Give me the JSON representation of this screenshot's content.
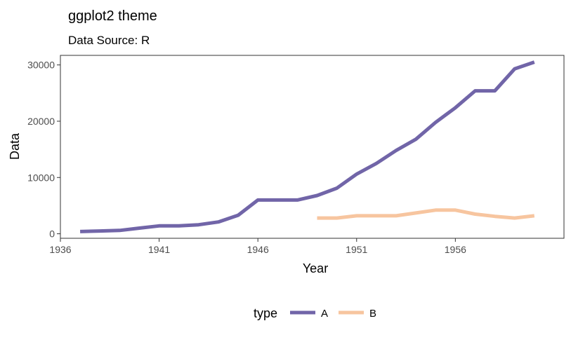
{
  "chart_data": {
    "type": "line",
    "title": "ggplot2 theme",
    "subtitle": "Data Source: R",
    "xlabel": "Year",
    "ylabel": "Data",
    "xlim": [
      1936,
      1961.5
    ],
    "ylim": [
      -800,
      31700
    ],
    "xticks": [
      1936,
      1941,
      1946,
      1951,
      1956
    ],
    "yticks": [
      0,
      10000,
      20000,
      30000
    ],
    "grid": false,
    "legend": {
      "title": "type",
      "position": "bottom"
    },
    "series": [
      {
        "name": "A",
        "color": "#7165a8",
        "x": [
          1937,
          1938,
          1939,
          1940,
          1941,
          1942,
          1943,
          1944,
          1945,
          1946,
          1947,
          1948,
          1949,
          1950,
          1951,
          1952,
          1953,
          1954,
          1955,
          1956,
          1957,
          1958,
          1959,
          1960
        ],
        "y": [
          400,
          500,
          600,
          1000,
          1400,
          1400,
          1600,
          2100,
          3300,
          6000,
          6000,
          6000,
          6800,
          8100,
          10600,
          12500,
          14800,
          16800,
          19800,
          22400,
          25400,
          25400,
          29300,
          30500
        ]
      },
      {
        "name": "B",
        "color": "#f7c59f",
        "x": [
          1949,
          1950,
          1951,
          1952,
          1953,
          1954,
          1955,
          1956,
          1957,
          1958,
          1959,
          1960
        ],
        "y": [
          2800,
          2800,
          3200,
          3200,
          3200,
          3700,
          4200,
          4200,
          3500,
          3100,
          2800,
          3200
        ]
      }
    ]
  }
}
